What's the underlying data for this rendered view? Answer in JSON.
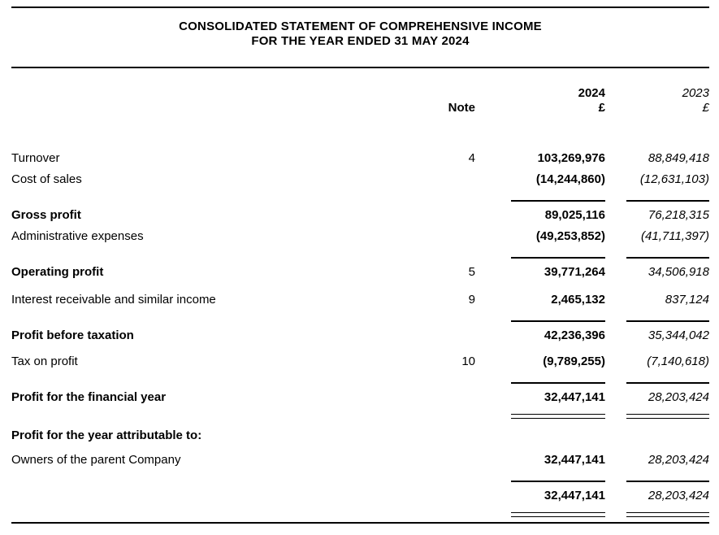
{
  "header": {
    "title": "CONSOLIDATED STATEMENT OF COMPREHENSIVE INCOME",
    "subtitle": "FOR THE YEAR ENDED 31 MAY 2024"
  },
  "columns": {
    "note_label": "Note",
    "year_2024": "2024",
    "year_2023": "2023",
    "currency_2024": "£",
    "currency_2023": "£"
  },
  "rows": {
    "turnover": {
      "label": "Turnover",
      "note": "4",
      "v2024": "103,269,976",
      "v2023": "88,849,418"
    },
    "cost_of_sales": {
      "label": "Cost of sales",
      "v2024": "(14,244,860)",
      "v2023": "(12,631,103)"
    },
    "gross_profit": {
      "label": "Gross profit",
      "v2024": "89,025,116",
      "v2023": "76,218,315"
    },
    "admin_expenses": {
      "label": "Administrative expenses",
      "v2024": "(49,253,852)",
      "v2023": "(41,711,397)"
    },
    "operating_profit": {
      "label": "Operating profit",
      "note": "5",
      "v2024": "39,771,264",
      "v2023": "34,506,918"
    },
    "interest_receivable": {
      "label": "Interest receivable and similar income",
      "note": "9",
      "v2024": "2,465,132",
      "v2023": "837,124"
    },
    "profit_before_taxation": {
      "label": "Profit before taxation",
      "v2024": "42,236,396",
      "v2023": "35,344,042"
    },
    "tax_on_profit": {
      "label": "Tax on profit",
      "note": "10",
      "v2024": "(9,789,255)",
      "v2023": "(7,140,618)"
    },
    "profit_for_year": {
      "label": "Profit for the financial year",
      "v2024": "32,447,141",
      "v2023": "28,203,424"
    },
    "attributable_heading": {
      "label": "Profit for the year attributable to:"
    },
    "owners_parent": {
      "label": "Owners of the parent Company",
      "v2024": "32,447,141",
      "v2023": "28,203,424"
    },
    "total": {
      "v2024": "32,447,141",
      "v2023": "28,203,424"
    }
  }
}
